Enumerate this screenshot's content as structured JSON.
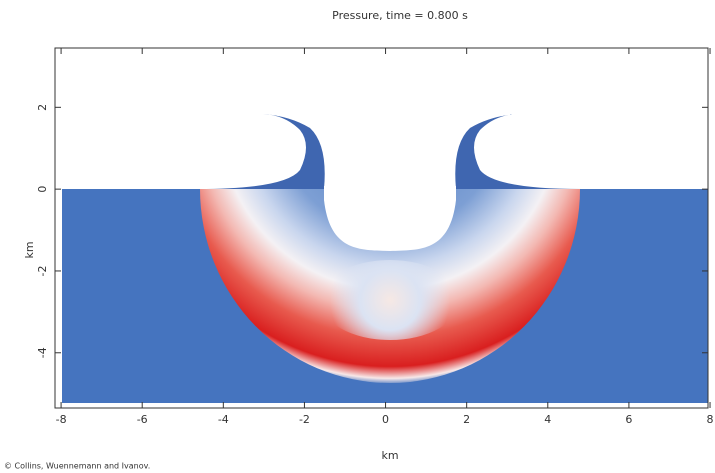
{
  "chart_data": {
    "type": "contour",
    "title": "Pressure, time =   0.800 s",
    "x_label": "km",
    "y_label": "km",
    "credit": "© Collins, Wuennemann and Ivanov.",
    "xlim": [
      -8.15,
      7.95
    ],
    "ylim": [
      -5.35,
      3.45
    ],
    "xticks": [
      -8,
      -6,
      -4,
      -2,
      0,
      2,
      4,
      6,
      8
    ],
    "yticks": [
      -4,
      -2,
      0,
      2
    ]
  }
}
